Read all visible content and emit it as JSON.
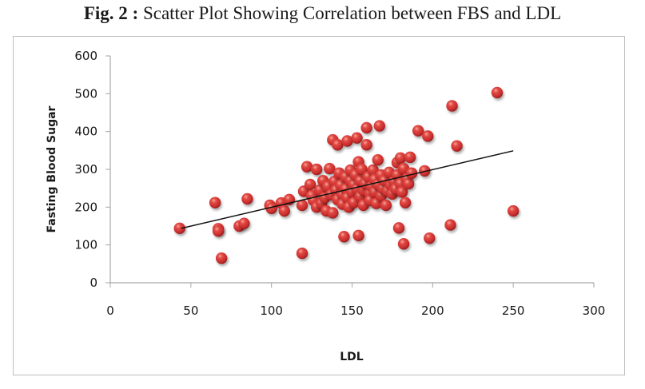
{
  "figure": {
    "prefix": "Fig. 2 :",
    "caption": " Scatter Plot Showing Correlation between FBS and LDL"
  },
  "colors": {
    "point": "#d63a3a",
    "point_highlight": "#f08a80",
    "point_shadow": "#9a1f1f",
    "trendline": "#111111",
    "axis": "#a6a6a6",
    "frame": "#bdbdbd"
  },
  "chart_data": {
    "type": "scatter",
    "title": "Scatter Plot Showing Correlation between FBS and LDL",
    "xlabel": "LDL",
    "ylabel": "Fasting Blood Sugar",
    "xlim": [
      0,
      300
    ],
    "ylim": [
      0,
      600
    ],
    "xticks": [
      "0",
      "50",
      "100",
      "150",
      "200",
      "250",
      "300"
    ],
    "yticks": [
      "0",
      "100",
      "200",
      "300",
      "400",
      "500",
      "600"
    ],
    "grid": false,
    "legend": "none",
    "trendline": {
      "type": "linear",
      "x": [
        44,
        250
      ],
      "y": [
        144,
        349
      ]
    },
    "points": [
      [
        43,
        144
      ],
      [
        65,
        212
      ],
      [
        67,
        143
      ],
      [
        67,
        137
      ],
      [
        69,
        65
      ],
      [
        80,
        150
      ],
      [
        83,
        157
      ],
      [
        85,
        222
      ],
      [
        99,
        205
      ],
      [
        100,
        197
      ],
      [
        106,
        211
      ],
      [
        108,
        190
      ],
      [
        111,
        220
      ],
      [
        119,
        78
      ],
      [
        119,
        205
      ],
      [
        120,
        242
      ],
      [
        122,
        307
      ],
      [
        124,
        260
      ],
      [
        125,
        230
      ],
      [
        126,
        218
      ],
      [
        128,
        300
      ],
      [
        128,
        200
      ],
      [
        130,
        245
      ],
      [
        131,
        210
      ],
      [
        132,
        270
      ],
      [
        133,
        225
      ],
      [
        134,
        190
      ],
      [
        135,
        255
      ],
      [
        136,
        302
      ],
      [
        137,
        233
      ],
      [
        138,
        185
      ],
      [
        138,
        378
      ],
      [
        139,
        268
      ],
      [
        140,
        245
      ],
      [
        141,
        220
      ],
      [
        141,
        365
      ],
      [
        142,
        290
      ],
      [
        143,
        258
      ],
      [
        144,
        233
      ],
      [
        144,
        208
      ],
      [
        145,
        122
      ],
      [
        146,
        280
      ],
      [
        146,
        248
      ],
      [
        147,
        375
      ],
      [
        147,
        225
      ],
      [
        148,
        200
      ],
      [
        149,
        270
      ],
      [
        149,
        298
      ],
      [
        150,
        240
      ],
      [
        151,
        260
      ],
      [
        151,
        212
      ],
      [
        152,
        285
      ],
      [
        153,
        248
      ],
      [
        153,
        383
      ],
      [
        154,
        125
      ],
      [
        154,
        320
      ],
      [
        155,
        270
      ],
      [
        155,
        228
      ],
      [
        156,
        300
      ],
      [
        157,
        245
      ],
      [
        157,
        205
      ],
      [
        158,
        262
      ],
      [
        159,
        410
      ],
      [
        159,
        365
      ],
      [
        160,
        280
      ],
      [
        161,
        236
      ],
      [
        161,
        218
      ],
      [
        162,
        255
      ],
      [
        163,
        298
      ],
      [
        164,
        273
      ],
      [
        164,
        240
      ],
      [
        165,
        210
      ],
      [
        166,
        325
      ],
      [
        166,
        260
      ],
      [
        167,
        415
      ],
      [
        168,
        285
      ],
      [
        168,
        230
      ],
      [
        169,
        250
      ],
      [
        170,
        270
      ],
      [
        171,
        205
      ],
      [
        172,
        243
      ],
      [
        173,
        292
      ],
      [
        174,
        258
      ],
      [
        175,
        235
      ],
      [
        176,
        268
      ],
      [
        177,
        248
      ],
      [
        178,
        318
      ],
      [
        178,
        285
      ],
      [
        179,
        145
      ],
      [
        180,
        330
      ],
      [
        180,
        262
      ],
      [
        181,
        240
      ],
      [
        182,
        302
      ],
      [
        182,
        103
      ],
      [
        183,
        212
      ],
      [
        184,
        275
      ],
      [
        185,
        262
      ],
      [
        186,
        332
      ],
      [
        187,
        290
      ],
      [
        191,
        402
      ],
      [
        195,
        296
      ],
      [
        197,
        388
      ],
      [
        198,
        118
      ],
      [
        211,
        153
      ],
      [
        212,
        468
      ],
      [
        215,
        362
      ],
      [
        240,
        503
      ],
      [
        250,
        190
      ]
    ]
  }
}
